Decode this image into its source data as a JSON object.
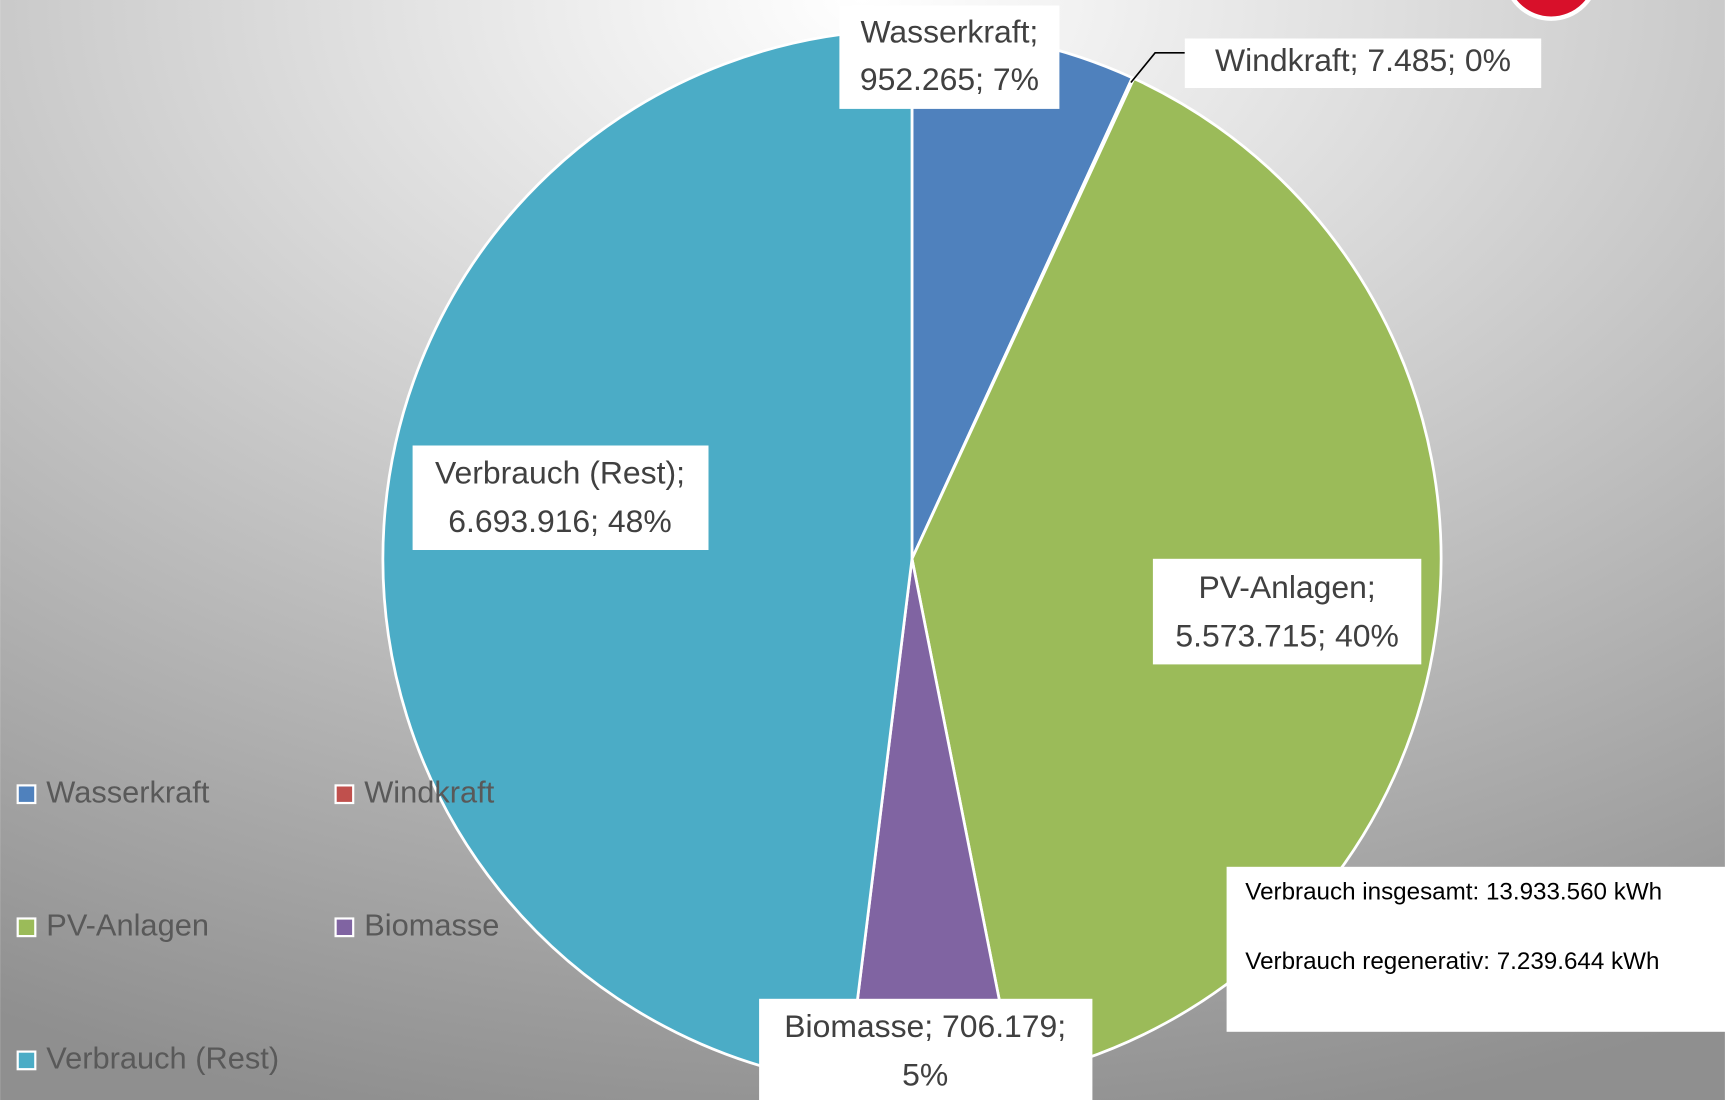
{
  "chart_data": {
    "type": "pie",
    "categories": [
      "Wasserkraft",
      "Windkraft",
      "PV-Anlagen",
      "Biomasse",
      "Verbrauch (Rest)"
    ],
    "values": [
      952265,
      7485,
      5573715,
      706179,
      6693916
    ],
    "value_labels": [
      [
        "Wasserkraft;",
        "952.265; 7%"
      ],
      [
        "Windkraft; 7.485; 0%"
      ],
      [
        "PV-Anlagen;",
        "5.573.715; 40%"
      ],
      [
        "Biomasse; 706.179;",
        "5%"
      ],
      [
        "Verbrauch (Rest);",
        "6.693.916; 48%"
      ]
    ],
    "colors": [
      "#4f81bd",
      "#c0504d",
      "#9bbb59",
      "#8064a2",
      "#4bacc6"
    ],
    "legend": "left",
    "annotations": [
      "Verbrauch insgesamt: 13.933.560 kWh",
      "Verbrauch regenerativ: 7.239.644 kWh"
    ]
  }
}
